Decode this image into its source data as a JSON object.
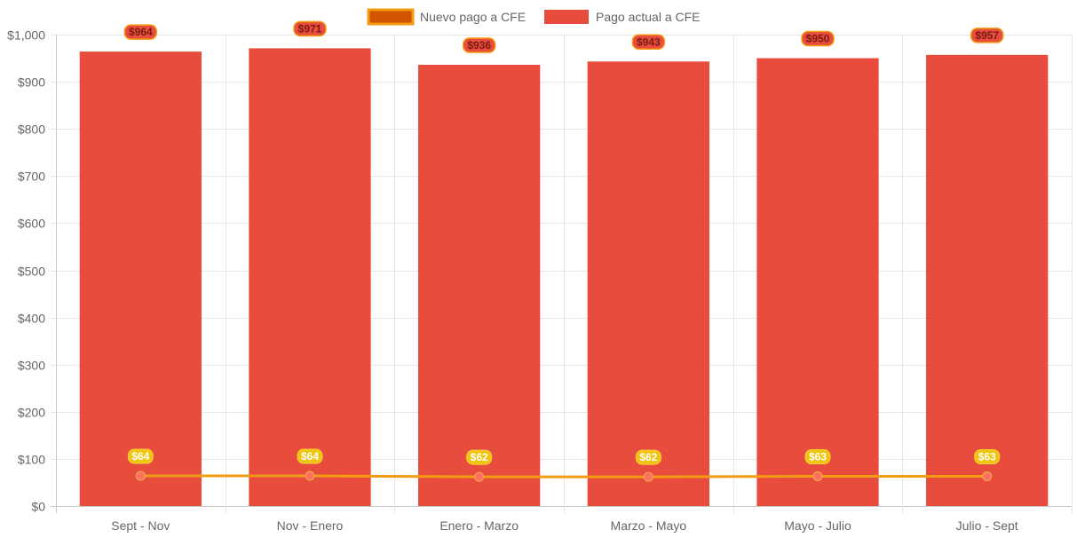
{
  "chart_data": {
    "type": "bar",
    "categories": [
      "Sept - Nov",
      "Nov - Enero",
      "Enero - Marzo",
      "Marzo - Mayo",
      "Mayo - Julio",
      "Julio - Sept"
    ],
    "series": [
      {
        "name": "Nuevo pago a CFE",
        "type": "line",
        "values": [
          64,
          64,
          62,
          62,
          63,
          63
        ],
        "labels": [
          "$64",
          "$64",
          "$62",
          "$62",
          "$63",
          "$63"
        ],
        "color": "#f39c12",
        "legend_fill": "#d35400",
        "point_color": "#ff6f61",
        "label_bg": "#f1c40f"
      },
      {
        "name": "Pago actual a CFE",
        "type": "bar",
        "values": [
          964,
          971,
          936,
          943,
          950,
          957
        ],
        "labels": [
          "$964",
          "$971",
          "$936",
          "$943",
          "$950",
          "$957"
        ],
        "color": "#e74c3c",
        "label_bg": "#e74c3c",
        "label_border": "#f39c12"
      }
    ],
    "ylim": [
      0,
      1000
    ],
    "yticks": [
      0,
      100,
      200,
      300,
      400,
      500,
      600,
      700,
      800,
      900,
      1000
    ],
    "ytick_labels": [
      "$0",
      "$100",
      "$200",
      "$300",
      "$400",
      "$500",
      "$600",
      "$700",
      "$800",
      "$900",
      "$1,000"
    ],
    "grid": true,
    "legend_position": "top-center",
    "title": "",
    "xlabel": "",
    "ylabel": ""
  }
}
